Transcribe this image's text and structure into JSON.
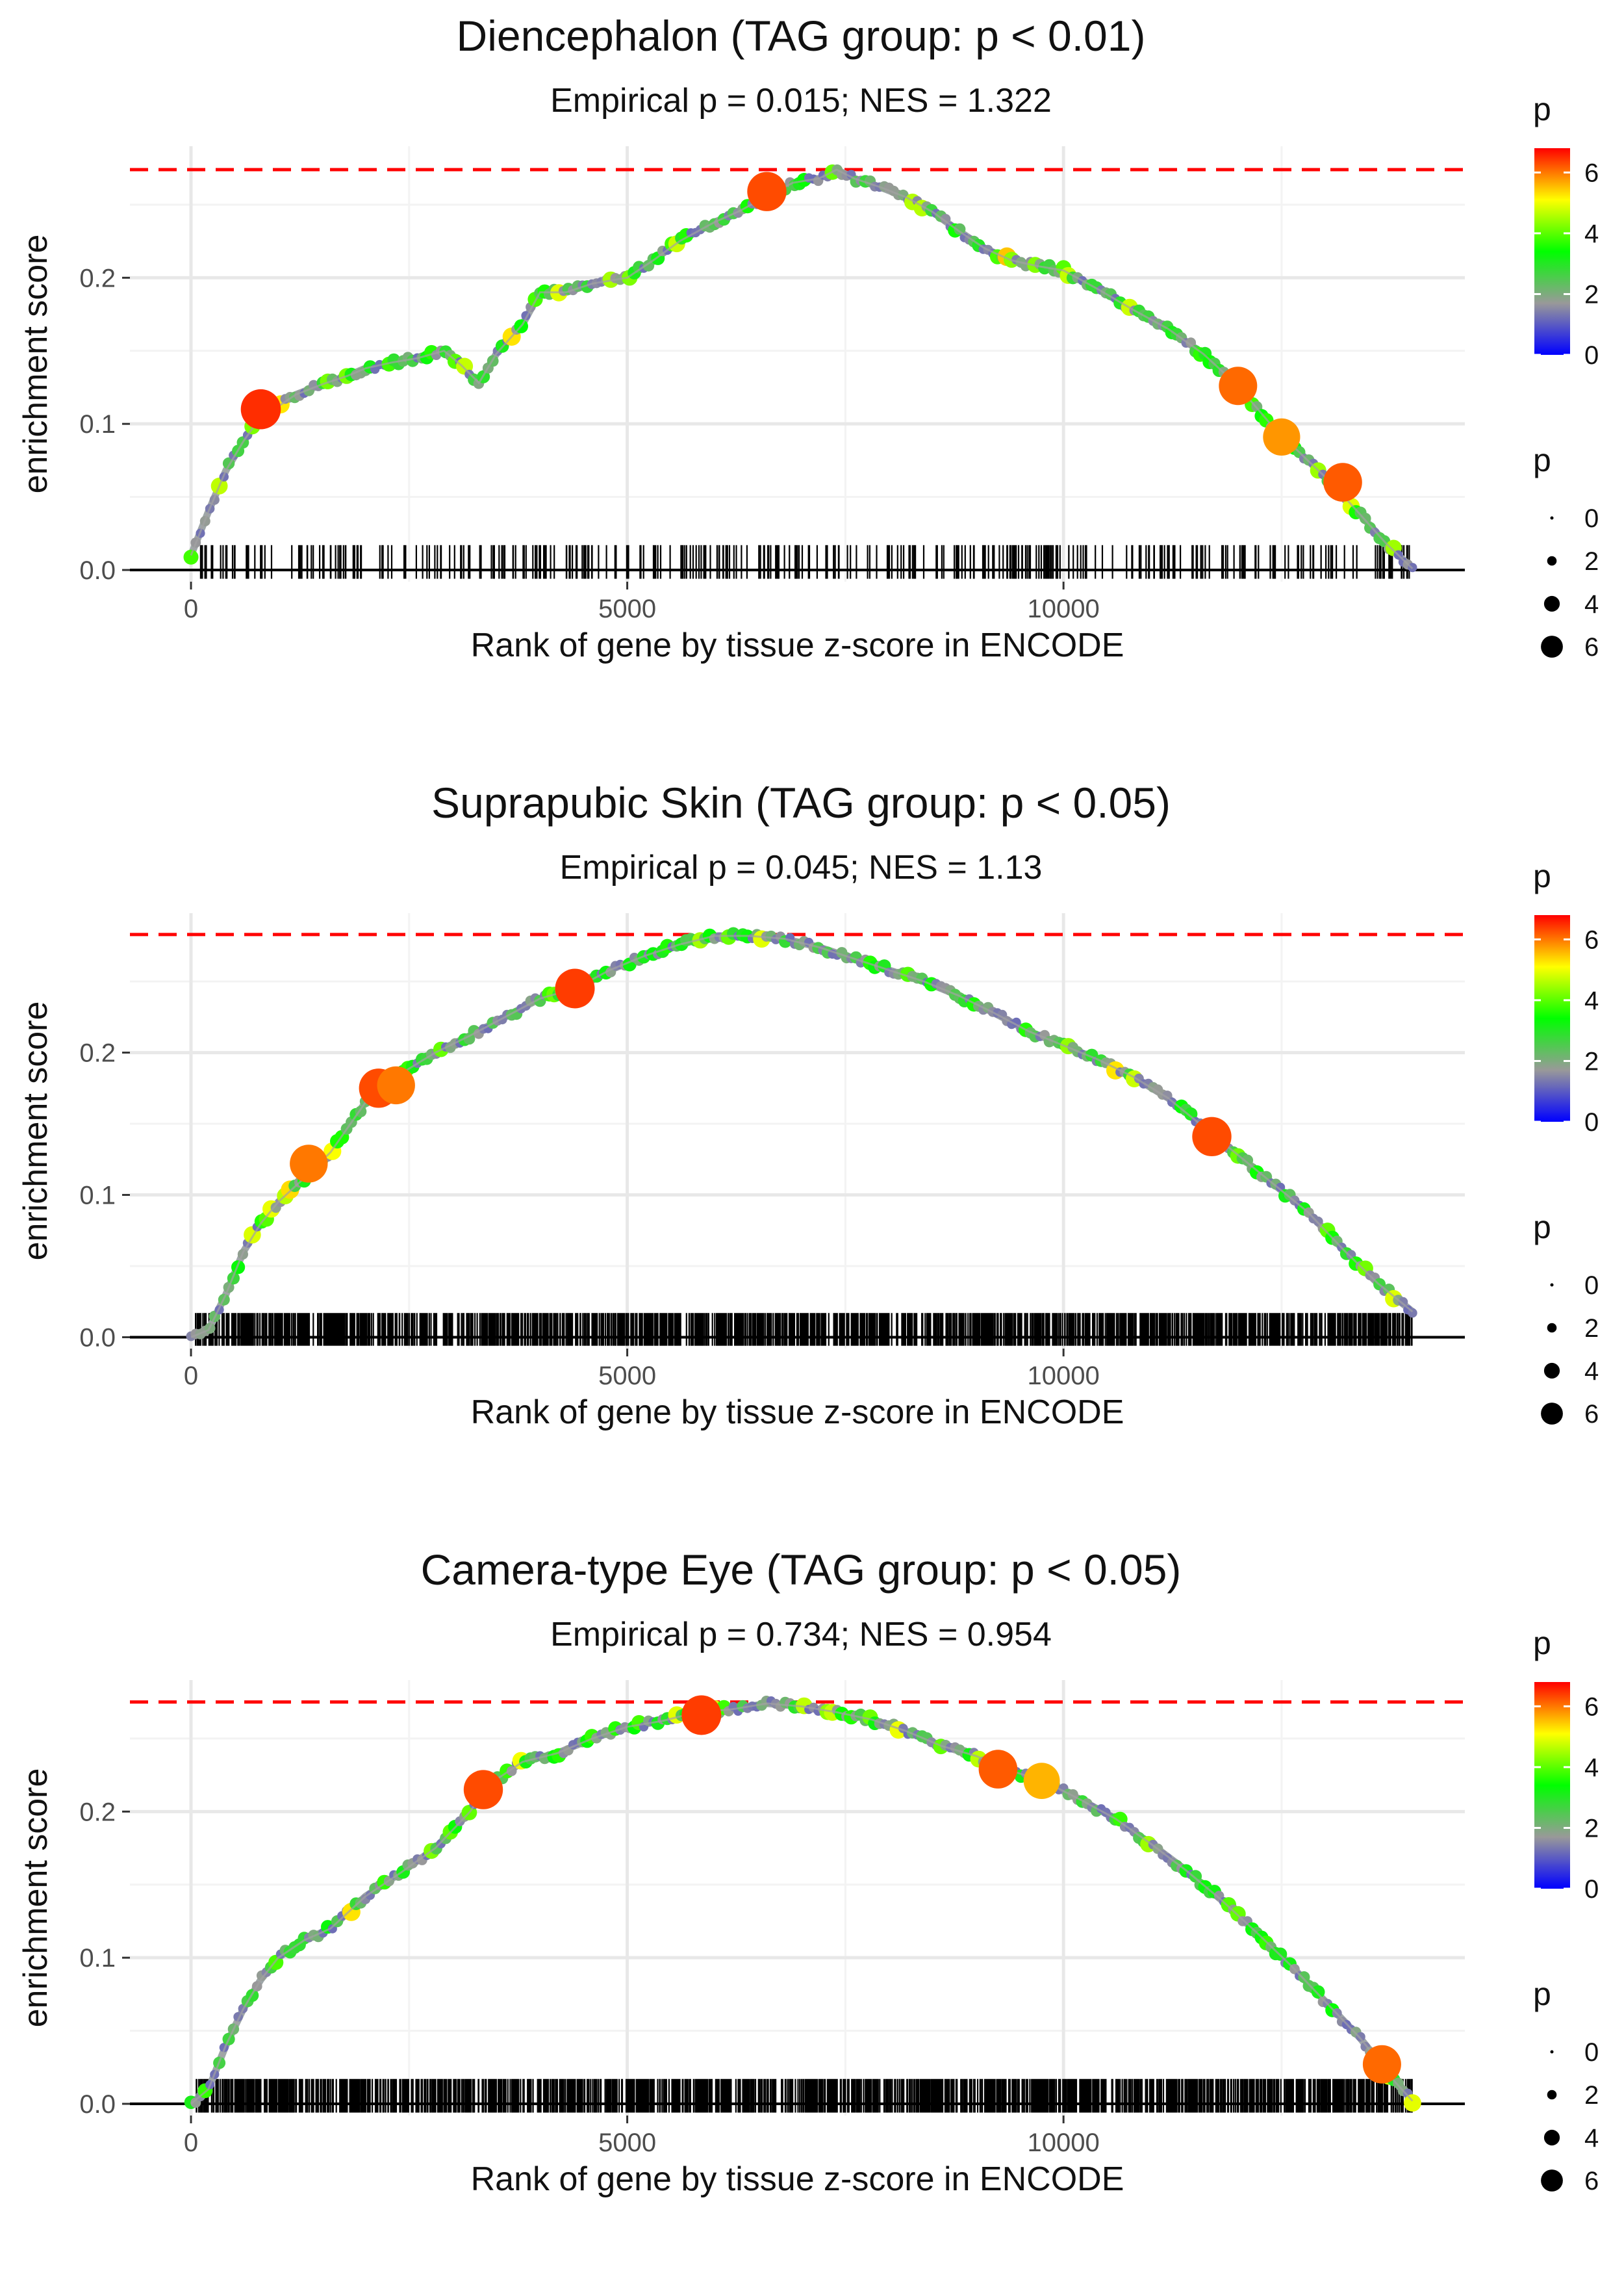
{
  "chart_data": [
    {
      "type": "line",
      "title": "Diencephalon (TAG group: p < 0.01)",
      "subtitle": "Empirical p = 0.015; NES = 1.322",
      "xlabel": "Rank of gene by tissue z-score in ENCODE",
      "ylabel": "enrichment score",
      "xlim": [
        -700,
        14600
      ],
      "ylim": [
        -0.008,
        0.29
      ],
      "x_ticks": [
        0,
        5000,
        10000
      ],
      "x_tick_labels": [
        "0",
        "5000",
        "10000"
      ],
      "y_ticks": [
        0.0,
        0.1,
        0.2
      ],
      "y_tick_labels": [
        "0.0",
        "0.1",
        "0.2"
      ],
      "max_es_line": 0.274,
      "min_es_line": 0.0,
      "x": [
        0,
        200,
        400,
        600,
        800,
        1000,
        1200,
        1500,
        1800,
        2000,
        2300,
        2600,
        2900,
        3100,
        3300,
        3500,
        3800,
        4000,
        4300,
        4600,
        5000,
        5300,
        5600,
        6000,
        6300,
        6600,
        6900,
        7200,
        7400,
        7600,
        7900,
        8200,
        8500,
        8800,
        9100,
        9400,
        9700,
        10000,
        10400,
        10800,
        11200,
        11600,
        12000,
        12400,
        12800,
        13100,
        13400,
        13700,
        14000
      ],
      "es": [
        0.01,
        0.04,
        0.068,
        0.088,
        0.105,
        0.112,
        0.12,
        0.127,
        0.133,
        0.138,
        0.142,
        0.145,
        0.15,
        0.14,
        0.128,
        0.148,
        0.168,
        0.19,
        0.19,
        0.196,
        0.2,
        0.212,
        0.225,
        0.238,
        0.246,
        0.256,
        0.265,
        0.268,
        0.274,
        0.268,
        0.262,
        0.255,
        0.245,
        0.232,
        0.22,
        0.212,
        0.208,
        0.205,
        0.192,
        0.178,
        0.165,
        0.148,
        0.126,
        0.098,
        0.075,
        0.058,
        0.038,
        0.018,
        0.001
      ],
      "highlighted_genes": [
        {
          "x": 800,
          "es": 0.11,
          "p": 6.5
        },
        {
          "x": 6600,
          "es": 0.259,
          "p": 6.3
        },
        {
          "x": 12000,
          "es": 0.126,
          "p": 6.1
        },
        {
          "x": 12500,
          "es": 0.091,
          "p": 5.8
        },
        {
          "x": 13200,
          "es": 0.06,
          "p": 6.2
        }
      ],
      "colorbar": {
        "title": "p",
        "range": [
          0,
          6.8
        ],
        "ticks": [
          0,
          2,
          4,
          6
        ],
        "colors": [
          "#0000ff",
          "#999999",
          "#00ff00",
          "#ffff00",
          "#ff0000"
        ]
      },
      "size_legend": {
        "title": "p",
        "values": [
          0,
          2,
          4,
          6
        ]
      }
    },
    {
      "type": "line",
      "title": "Suprapubic Skin (TAG group: p < 0.05)",
      "subtitle": "Empirical p = 0.045; NES = 1.13",
      "xlabel": "Rank of gene by tissue z-score in ENCODE",
      "ylabel": "enrichment score",
      "xlim": [
        -700,
        14600
      ],
      "ylim": [
        -0.008,
        0.298
      ],
      "x_ticks": [
        0,
        5000,
        10000
      ],
      "x_tick_labels": [
        "0",
        "5000",
        "10000"
      ],
      "y_ticks": [
        0.0,
        0.1,
        0.2
      ],
      "y_tick_labels": [
        "0.0",
        "0.1",
        "0.2"
      ],
      "max_es_line": 0.283,
      "min_es_line": 0.0,
      "x": [
        0,
        200,
        400,
        600,
        800,
        1000,
        1300,
        1600,
        2000,
        2400,
        2800,
        3200,
        3600,
        4000,
        4400,
        4800,
        5200,
        5600,
        6000,
        6400,
        6800,
        7200,
        7600,
        8000,
        8400,
        8800,
        9200,
        9600,
        10000,
        10400,
        10800,
        11200,
        11600,
        12000,
        12400,
        12800,
        13200,
        13600,
        14000
      ],
      "es": [
        0.0,
        0.005,
        0.03,
        0.06,
        0.08,
        0.095,
        0.112,
        0.13,
        0.165,
        0.185,
        0.2,
        0.212,
        0.225,
        0.238,
        0.245,
        0.258,
        0.268,
        0.276,
        0.282,
        0.282,
        0.28,
        0.274,
        0.266,
        0.258,
        0.25,
        0.24,
        0.228,
        0.215,
        0.205,
        0.195,
        0.183,
        0.168,
        0.148,
        0.128,
        0.108,
        0.088,
        0.062,
        0.038,
        0.018
      ],
      "highlighted_genes": [
        {
          "x": 1350,
          "es": 0.122,
          "p": 6.0
        },
        {
          "x": 2150,
          "es": 0.175,
          "p": 6.3
        },
        {
          "x": 2350,
          "es": 0.177,
          "p": 6.0
        },
        {
          "x": 4400,
          "es": 0.245,
          "p": 6.4
        },
        {
          "x": 11700,
          "es": 0.141,
          "p": 6.3
        }
      ],
      "colorbar": {
        "title": "p",
        "range": [
          0,
          6.8
        ],
        "ticks": [
          0,
          2,
          4,
          6
        ],
        "colors": [
          "#0000ff",
          "#999999",
          "#00ff00",
          "#ffff00",
          "#ff0000"
        ]
      },
      "size_legend": {
        "title": "p",
        "values": [
          0,
          2,
          4,
          6
        ]
      }
    },
    {
      "type": "line",
      "title": "Camera-type Eye (TAG group: p < 0.05)",
      "subtitle": "Empirical p = 0.734; NES = 0.954",
      "xlabel": "Rank of gene by tissue z-score in ENCODE",
      "ylabel": "enrichment score",
      "xlim": [
        -700,
        14600
      ],
      "ylim": [
        -0.008,
        0.29
      ],
      "x_ticks": [
        0,
        5000,
        10000
      ],
      "x_tick_labels": [
        "0",
        "5000",
        "10000"
      ],
      "y_ticks": [
        0.0,
        0.1,
        0.2
      ],
      "y_tick_labels": [
        "0.0",
        "0.1",
        "0.2"
      ],
      "max_es_line": 0.275,
      "min_es_line": 0.0,
      "x": [
        0,
        200,
        400,
        600,
        800,
        1000,
        1300,
        1600,
        2000,
        2400,
        2800,
        3200,
        3400,
        3800,
        4200,
        4600,
        5000,
        5400,
        5800,
        6200,
        6600,
        7000,
        7400,
        7800,
        8200,
        8600,
        9000,
        9400,
        9800,
        10200,
        10600,
        11000,
        11400,
        11800,
        12200,
        12600,
        13000,
        13400,
        13800,
        14000
      ],
      "es": [
        0.0,
        0.01,
        0.04,
        0.065,
        0.085,
        0.1,
        0.112,
        0.12,
        0.142,
        0.158,
        0.175,
        0.2,
        0.218,
        0.234,
        0.24,
        0.25,
        0.258,
        0.262,
        0.268,
        0.27,
        0.274,
        0.272,
        0.268,
        0.263,
        0.255,
        0.245,
        0.238,
        0.228,
        0.22,
        0.208,
        0.195,
        0.178,
        0.16,
        0.14,
        0.118,
        0.095,
        0.07,
        0.045,
        0.015,
        0.002
      ],
      "highlighted_genes": [
        {
          "x": 3350,
          "es": 0.215,
          "p": 6.3
        },
        {
          "x": 5850,
          "es": 0.266,
          "p": 6.4
        },
        {
          "x": 9250,
          "es": 0.229,
          "p": 6.2
        },
        {
          "x": 9750,
          "es": 0.221,
          "p": 5.6
        },
        {
          "x": 13650,
          "es": 0.027,
          "p": 6.1
        }
      ],
      "colorbar": {
        "title": "p",
        "range": [
          0,
          6.8
        ],
        "ticks": [
          0,
          2,
          4,
          6
        ],
        "colors": [
          "#0000ff",
          "#999999",
          "#00ff00",
          "#ffff00",
          "#ff0000"
        ]
      },
      "size_legend": {
        "title": "p",
        "values": [
          0,
          2,
          4,
          6
        ]
      }
    }
  ]
}
